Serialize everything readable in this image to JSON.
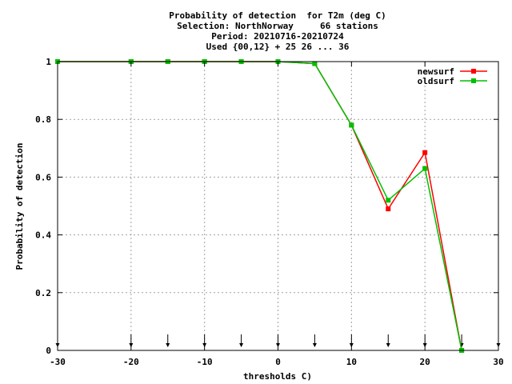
{
  "chart_data": {
    "type": "line",
    "title_lines": [
      "Probability of detection  for T2m (deg C)",
      "Selection: NorthNorway     66 stations",
      "Period: 20210716-20210724",
      "Used {00,12} + 25 26 ... 36"
    ],
    "xlabel": "thresholds C)",
    "ylabel": "Probability of detection",
    "xlim": [
      -30,
      30
    ],
    "ylim": [
      0,
      1
    ],
    "xticks": [
      -30,
      -20,
      -10,
      0,
      10,
      20,
      30
    ],
    "yticks": [
      0,
      0.2,
      0.4,
      0.6,
      0.8,
      1
    ],
    "grid": true,
    "legend_position": "top-right",
    "threshold_markers": [
      -30,
      -20,
      -15,
      -10,
      -5,
      0,
      5,
      10,
      15,
      20,
      25,
      30
    ],
    "x": [
      -30,
      -20,
      -15,
      -10,
      -5,
      0,
      5,
      10,
      15,
      20,
      25
    ],
    "series": [
      {
        "name": "newsurf",
        "color": "#ff0000",
        "values": [
          1,
          1,
          1,
          1,
          1,
          1,
          0.993,
          0.78,
          0.49,
          0.685,
          0
        ]
      },
      {
        "name": "oldsurf",
        "color": "#00c000",
        "values": [
          1,
          1,
          1,
          1,
          1,
          1,
          0.993,
          0.78,
          0.52,
          0.63,
          0
        ]
      }
    ]
  }
}
